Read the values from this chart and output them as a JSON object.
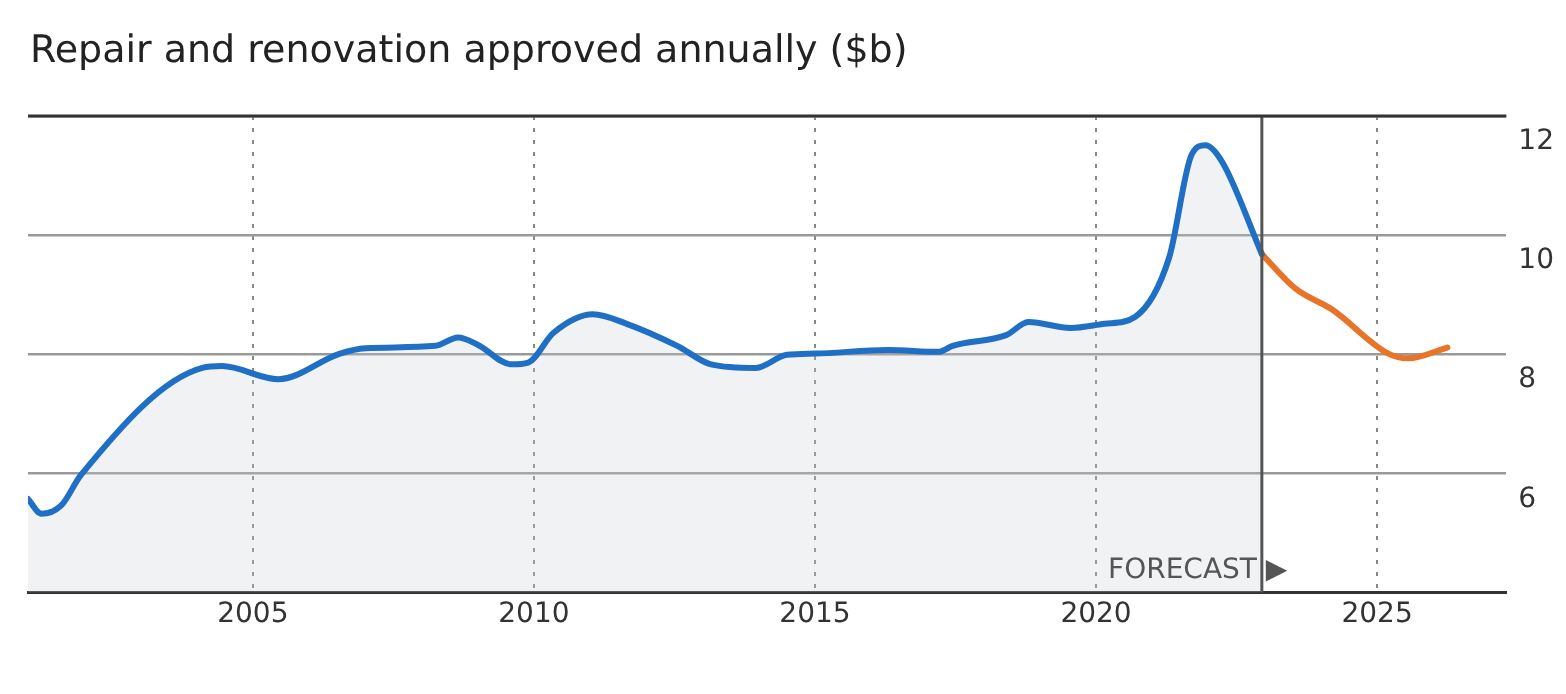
{
  "chart_data": {
    "type": "line",
    "title": "Repair and renovation approved annually ($b)",
    "series": [
      {
        "type": "area",
        "color": "#1f6fc5",
        "x": [
          2001.0,
          2001.24,
          2001.6,
          2001.94,
          2004.1,
          2004.45,
          2005.45,
          2006.55,
          2007.0,
          2008.25,
          2008.65,
          2009.0,
          2009.6,
          2009.9,
          2010.35,
          2011.05,
          2011.65,
          2012.55,
          2013.15,
          2013.95,
          2014.5,
          2015.0,
          2016.3,
          2017.2,
          2017.45,
          2018.4,
          2018.8,
          2019.55,
          2020.15,
          2020.7,
          2021.3,
          2021.7,
          2021.95,
          2022.25,
          2022.95
        ],
        "values": [
          5.57,
          5.32,
          5.47,
          5.97,
          7.77,
          7.8,
          7.58,
          8.01,
          8.1,
          8.14,
          8.28,
          8.16,
          7.83,
          7.86,
          8.36,
          8.67,
          8.51,
          8.14,
          7.83,
          7.77,
          7.99,
          8.01,
          8.07,
          8.04,
          8.14,
          8.32,
          8.54,
          8.44,
          8.51,
          8.63,
          9.62,
          11.35,
          11.51,
          11.22,
          9.68
        ]
      },
      {
        "type": "line",
        "color": "#e8742a",
        "x": [
          2022.95,
          2023.55,
          2024.2,
          2025.2,
          2025.55,
          2026.25
        ],
        "values": [
          9.68,
          9.1,
          8.75,
          8.01,
          7.93,
          8.11
        ]
      }
    ],
    "xlim": [
      2001,
      2027.3
    ],
    "xticks": [
      2005,
      2010,
      2015,
      2020,
      2025
    ],
    "ylim": [
      4,
      12
    ],
    "yticks": [
      6,
      8,
      10,
      12
    ],
    "ref_lines": [
      {
        "axis": "x",
        "value": 2022.95,
        "label": "FORECAST ▶",
        "color": "#555555"
      }
    ],
    "grid": true,
    "legend": false,
    "marker": "none",
    "line_style": "solid"
  }
}
